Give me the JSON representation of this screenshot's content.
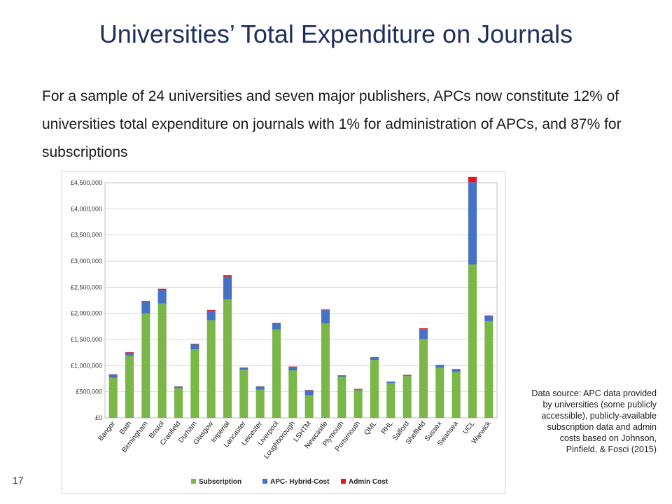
{
  "slide": {
    "title": "Universities’ Total Expenditure on Journals",
    "subtitle": "For a sample of 24 universities and seven major publishers, APCs now constitute 12% of universities total expenditure on journals with 1% for administration of APCs, and 87% for subscriptions",
    "source_note": "Data source: APC data provided by universities (some publicly accessible), publicly-available subscription data and admin costs based on Johnson, Pinfield, & Fosci (2015)",
    "page_number": "17"
  },
  "chart_data": {
    "type": "bar",
    "stacked": true,
    "title": "",
    "xlabel": "",
    "ylabel": "",
    "ylim": [
      0,
      4500000
    ],
    "yticks": [
      0,
      500000,
      1000000,
      1500000,
      2000000,
      2500000,
      3000000,
      3500000,
      4000000,
      4500000
    ],
    "ytick_labels": [
      "£0",
      "£500,000",
      "£1,000,000",
      "£1,500,000",
      "£2,000,000",
      "£2,500,000",
      "£3,000,000",
      "£3,500,000",
      "£4,000,000",
      "£4,500,000"
    ],
    "grid": true,
    "legend_position": "bottom",
    "categories": [
      "Bangor",
      "Bath",
      "Birmingham",
      "Bristol",
      "Cranfield",
      "Durham",
      "Glasgow",
      "Imperial",
      "Lancaster",
      "Leicester",
      "Liverpool",
      "Loughborough",
      "LSHTM",
      "Newcastle",
      "Plymouth",
      "Portsmouth",
      "QML",
      "RHL",
      "Salford",
      "Sheffield",
      "Sussex",
      "Swansea",
      "UCL",
      "Warwick"
    ],
    "series": [
      {
        "name": "Subscription",
        "color": "#7ab648",
        "values": [
          770000,
          1190000,
          2000000,
          2190000,
          570000,
          1310000,
          1870000,
          2270000,
          920000,
          540000,
          1690000,
          910000,
          430000,
          1810000,
          790000,
          530000,
          1110000,
          670000,
          800000,
          1510000,
          960000,
          880000,
          2940000,
          1850000
        ]
      },
      {
        "name": "APC- Hybrid-Cost",
        "color": "#4472c4",
        "values": [
          60000,
          60000,
          220000,
          260000,
          30000,
          100000,
          180000,
          430000,
          40000,
          60000,
          120000,
          70000,
          100000,
          250000,
          20000,
          20000,
          50000,
          20000,
          20000,
          190000,
          50000,
          50000,
          1570000,
          100000
        ]
      },
      {
        "name": "Admin Cost",
        "color": "#e8151c",
        "values": [
          5000,
          10000,
          15000,
          20000,
          5000,
          10000,
          15000,
          30000,
          5000,
          5000,
          10000,
          5000,
          5000,
          15000,
          5000,
          5000,
          5000,
          5000,
          5000,
          15000,
          5000,
          5000,
          100000,
          10000
        ]
      }
    ]
  }
}
